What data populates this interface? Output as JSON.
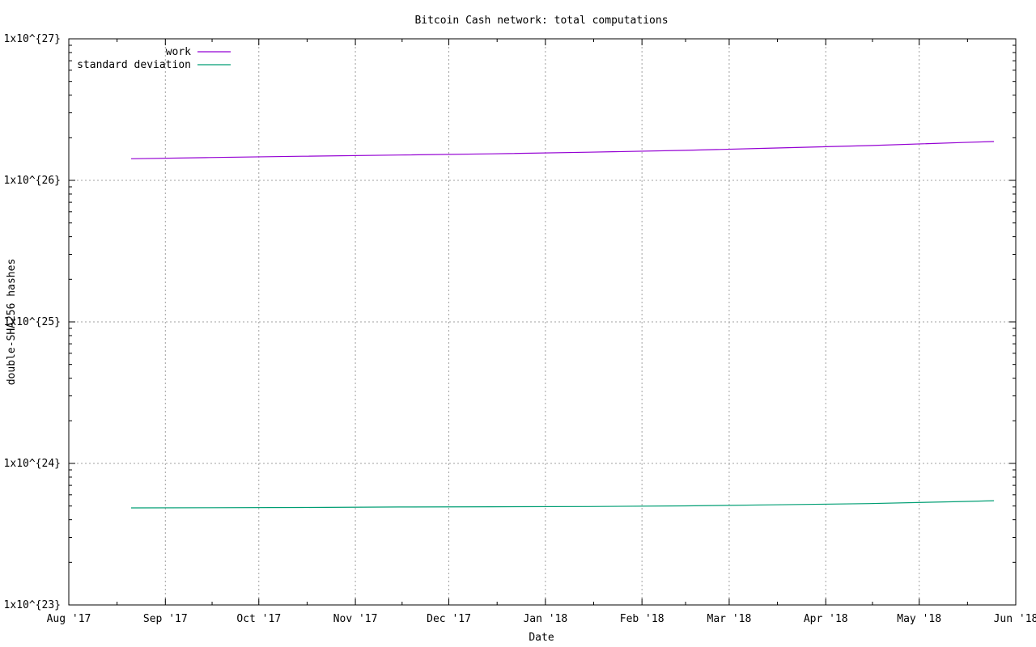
{
  "chart_data": {
    "type": "line",
    "title": "Bitcoin Cash network: total computations",
    "xlabel": "Date",
    "ylabel": "double-SHA256 hashes",
    "yscale": "log",
    "ylim": [
      1e+23,
      1e+27
    ],
    "xlim": [
      "2017-08-01",
      "2018-06-01"
    ],
    "grid": true,
    "legend_position": "top-left",
    "x_ticks": [
      {
        "date": "2017-08-01",
        "label": "Aug '17"
      },
      {
        "date": "2017-09-01",
        "label": "Sep '17"
      },
      {
        "date": "2017-10-01",
        "label": "Oct '17"
      },
      {
        "date": "2017-11-01",
        "label": "Nov '17"
      },
      {
        "date": "2017-12-01",
        "label": "Dec '17"
      },
      {
        "date": "2018-01-01",
        "label": "Jan '18"
      },
      {
        "date": "2018-02-01",
        "label": "Feb '18"
      },
      {
        "date": "2018-03-01",
        "label": "Mar '18"
      },
      {
        "date": "2018-04-01",
        "label": "Apr '18"
      },
      {
        "date": "2018-05-01",
        "label": "May '18"
      },
      {
        "date": "2018-06-01",
        "label": "Jun '18"
      }
    ],
    "y_ticks": [
      {
        "value": 1e+23,
        "label": "1x10^{23}"
      },
      {
        "value": 1e+24,
        "label": "1x10^{24}"
      },
      {
        "value": 1e+25,
        "label": "1x10^{25}"
      },
      {
        "value": 1e+26,
        "label": "1x10^{26}"
      },
      {
        "value": 1e+27,
        "label": "1x10^{27}"
      }
    ],
    "series": [
      {
        "name": "work",
        "color": "#9400d3",
        "x": [
          "2017-08-21",
          "2017-09-15",
          "2017-10-15",
          "2017-11-15",
          "2017-12-15",
          "2018-01-15",
          "2018-02-15",
          "2018-03-15",
          "2018-04-15",
          "2018-05-15",
          "2018-05-25"
        ],
        "y": [
          1.42e+26,
          1.45e+26,
          1.48e+26,
          1.51e+26,
          1.54e+26,
          1.58e+26,
          1.63e+26,
          1.69e+26,
          1.76e+26,
          1.85e+26,
          1.88e+26
        ]
      },
      {
        "name": "standard deviation",
        "color": "#009e73",
        "x": [
          "2017-08-21",
          "2017-09-15",
          "2017-10-15",
          "2017-11-15",
          "2017-12-15",
          "2018-01-15",
          "2018-02-15",
          "2018-03-15",
          "2018-04-15",
          "2018-05-15",
          "2018-05-25"
        ],
        "y": [
          4.85e+23,
          4.86e+23,
          4.88e+23,
          4.92e+23,
          4.94e+23,
          4.96e+23,
          5.01e+23,
          5.1e+23,
          5.2e+23,
          5.38e+23,
          5.45e+23
        ]
      }
    ]
  }
}
